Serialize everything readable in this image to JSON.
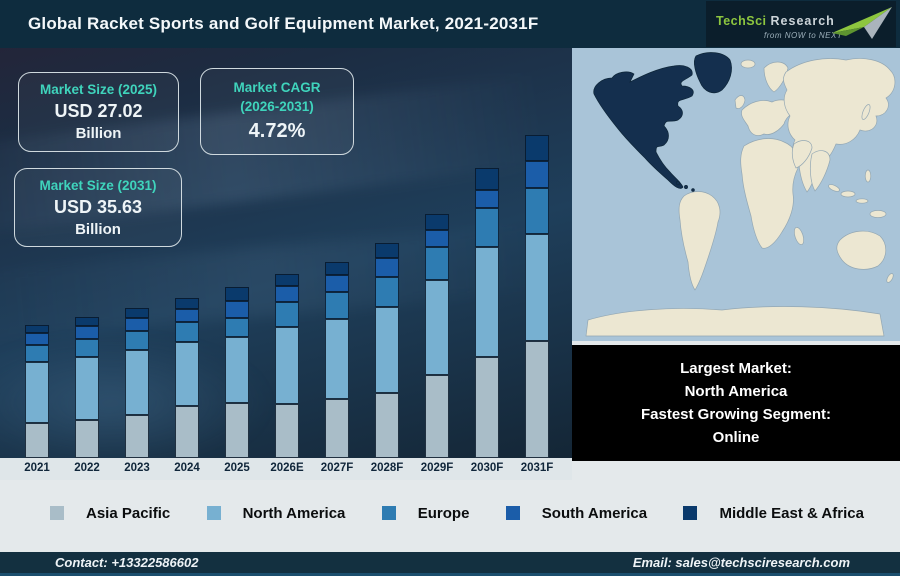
{
  "header": {
    "title": "Global Racket Sports and Golf Equipment Market, 2021-2031F",
    "logo": {
      "brand_primary": "TechSci",
      "brand_secondary": "Research",
      "tagline": "from NOW to NEXT",
      "brand_green": "#8dc63f"
    }
  },
  "stats": [
    {
      "label": "Market Size (2025)",
      "value": "USD 27.02",
      "unit": "Billion"
    },
    {
      "label": "Market CAGR",
      "label2": "(2026-2031)",
      "value": "4.72%"
    },
    {
      "label": "Market Size (2031)",
      "value": "USD 35.63",
      "unit": "Billion"
    }
  ],
  "chart_data": {
    "type": "bar",
    "stacked": true,
    "title": "Global Racket Sports and Golf Equipment Market, 2021-2031F",
    "categories": [
      "2021",
      "2022",
      "2023",
      "2024",
      "2025",
      "2026E",
      "2027F",
      "2028F",
      "2029F",
      "2030F",
      "2031F"
    ],
    "series": [
      {
        "name": "Asia Pacific",
        "color": "#a9bdc8",
        "values": [
          35,
          38,
          43,
          52,
          55,
          54,
          59,
          65,
          83,
          101,
          117
        ]
      },
      {
        "name": "North America",
        "color": "#77b0d1",
        "values": [
          61,
          63,
          65,
          64,
          66,
          77,
          80,
          86,
          95,
          110,
          107
        ]
      },
      {
        "name": "Europe",
        "color": "#2e7cb2",
        "values": [
          17,
          18,
          19,
          20,
          19,
          25,
          27,
          30,
          33,
          39,
          46
        ]
      },
      {
        "name": "South America",
        "color": "#1b5da9",
        "values": [
          12,
          13,
          13,
          13,
          17,
          16,
          17,
          19,
          17,
          18,
          27
        ]
      },
      {
        "name": "Middle East & Africa",
        "color": "#0a3a6c",
        "values": [
          8,
          9,
          10,
          11,
          14,
          12,
          13,
          15,
          16,
          22,
          26
        ]
      }
    ],
    "value_units": "relative stacked heights in px (stylized infographic, no numeric y-axis shown)",
    "totals_relative": [
      133,
      141,
      150,
      160,
      171,
      184,
      196,
      215,
      244,
      290,
      323
    ],
    "known_values": {
      "2025_total": "USD 27.02 Billion",
      "2031_total": "USD 35.63 Billion",
      "cagr_2026_2031": "4.72%"
    },
    "xlabel": "",
    "ylabel": "",
    "grid": false,
    "legend_position": "bottom"
  },
  "map": {
    "ocean_color": "#a9c4d8",
    "land_color": "#ece7d2",
    "highlight_region": "North America",
    "highlight_color": "#142f4e"
  },
  "callout": {
    "lines": [
      "Largest Market:",
      "North America",
      "Fastest Growing Segment:",
      "Online"
    ]
  },
  "footer": {
    "contact": "Contact: +13322586602",
    "email": "Email: sales@techsciresearch.com"
  },
  "colors": {
    "title_bar": "#0e2c3e",
    "accent_teal": "#3fd4bc",
    "chart_bg_top": "#232539",
    "chart_bg_mid": "#1f3f5b",
    "axis_strip": "#dfe6e9",
    "legend_strip": "#e4e9eb",
    "callout_bg": "#000000",
    "footer_bg": "#133040"
  }
}
